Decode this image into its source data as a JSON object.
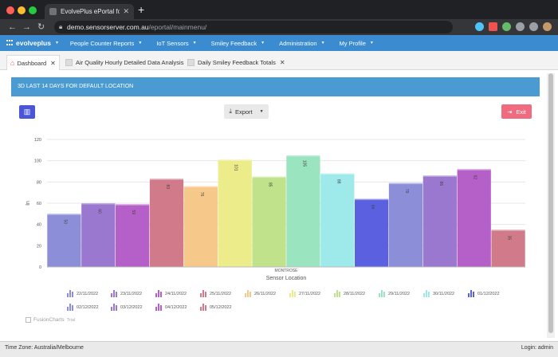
{
  "browser": {
    "tab_title": "EvolvePlus ePortal for IMMOTE",
    "url_host": "demo.sensorserver.com.au",
    "url_path": "/eportal/mainmenu/",
    "back_icon": "arrow-left-icon",
    "forward_icon": "arrow-right-icon",
    "reload_icon": "reload-icon"
  },
  "app": {
    "logo_text": "evolveplus",
    "menu": [
      {
        "label": "People Counter Reports"
      },
      {
        "label": "IoT Sensors"
      },
      {
        "label": "Smiley Feedback"
      },
      {
        "label": "Administration"
      },
      {
        "label": "My Profile"
      }
    ]
  },
  "tabs": [
    {
      "label": "Dashboard"
    },
    {
      "label": "Air Quality Hourly Detailed Data Analysis"
    },
    {
      "label": "Daily Smiley Feedback Totals"
    }
  ],
  "panel": {
    "title": "3D LAST 14 DAYS FOR DEFAULT LOCATION",
    "export_label": "Export",
    "exit_label": "Exit"
  },
  "chart_data": {
    "type": "bar",
    "categories": [
      "MONTROSE"
    ],
    "xlabel": "Sensor Location",
    "ylabel": "In",
    "ylim": [
      0,
      120
    ],
    "yticks": [
      0,
      20,
      40,
      60,
      80,
      100,
      120
    ],
    "grid": true,
    "legend_position": "bottom",
    "series": [
      {
        "name": "22/11/2022",
        "values": [
          50
        ],
        "color": "#8c8fd8"
      },
      {
        "name": "23/11/2022",
        "values": [
          60
        ],
        "color": "#9b78cf"
      },
      {
        "name": "24/11/2022",
        "values": [
          59
        ],
        "color": "#b560c8"
      },
      {
        "name": "25/11/2022",
        "values": [
          83
        ],
        "color": "#d07a8a"
      },
      {
        "name": "26/11/2022",
        "values": [
          76
        ],
        "color": "#f6c98a"
      },
      {
        "name": "27/11/2022",
        "values": [
          101
        ],
        "color": "#eced8a"
      },
      {
        "name": "28/11/2022",
        "values": [
          85
        ],
        "color": "#bfe28a"
      },
      {
        "name": "29/11/2022",
        "values": [
          105
        ],
        "color": "#9be4c0"
      },
      {
        "name": "30/11/2022",
        "values": [
          88
        ],
        "color": "#9eeaea"
      },
      {
        "name": "01/12/2022",
        "values": [
          64
        ],
        "color": "#5a60e0"
      },
      {
        "name": "02/12/2022",
        "values": [
          79
        ],
        "color": "#8c8fd8"
      },
      {
        "name": "03/12/2022",
        "values": [
          86
        ],
        "color": "#9b78cf"
      },
      {
        "name": "04/12/2022",
        "values": [
          92
        ],
        "color": "#b560c8"
      },
      {
        "name": "05/12/2022",
        "values": [
          35
        ],
        "color": "#d07a8a"
      }
    ]
  },
  "footer": {
    "brand": "FusionCharts",
    "brand_suffix": "Trial"
  },
  "status": {
    "timezone": "Time Zone: Australia/Melbourne",
    "login": "Login: admin"
  }
}
